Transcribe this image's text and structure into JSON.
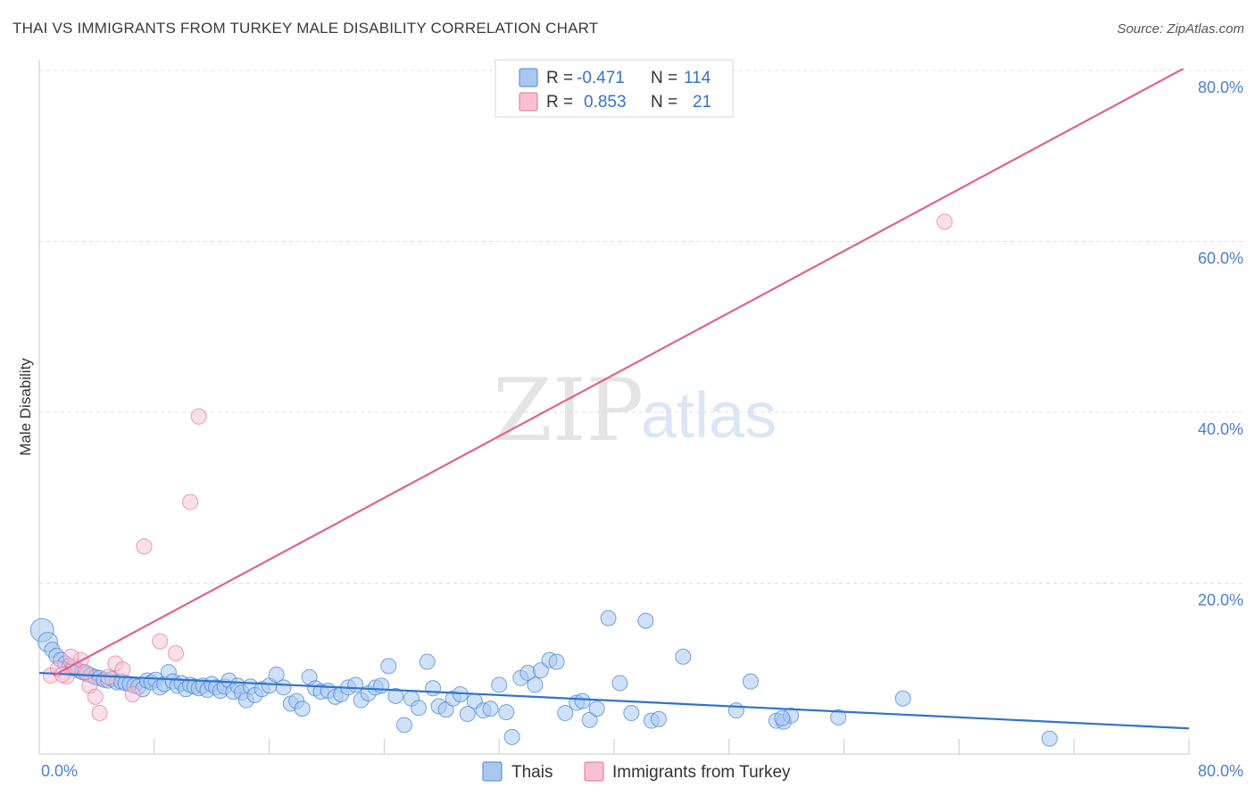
{
  "title": "THAI VS IMMIGRANTS FROM TURKEY MALE DISABILITY CORRELATION CHART",
  "source": "Source: ZipAtlas.com",
  "watermark": {
    "zip": "ZIP",
    "atlas": "atlas"
  },
  "colors": {
    "thais": "#4a86d8",
    "turkey": "#e8709a",
    "thais_fill": "#a9c8f0",
    "turkey_fill": "#f7c1d3"
  },
  "chart_data": {
    "type": "scatter",
    "title": "THAI VS IMMIGRANTS FROM TURKEY MALE DISABILITY CORRELATION CHART",
    "xlabel": "",
    "ylabel": "Male Disability",
    "xlim": [
      0,
      80
    ],
    "ylim": [
      0,
      80
    ],
    "x_tick_labels": [
      "0.0%",
      "80.0%"
    ],
    "y_ticks": [
      20,
      40,
      60,
      80
    ],
    "y_tick_labels": [
      "20.0%",
      "40.0%",
      "60.0%",
      "80.0%"
    ],
    "legend": [
      {
        "name": "Thais",
        "r_label": "R =",
        "r": "-0.471",
        "n_label": "N =",
        "n": "114"
      },
      {
        "name": "Immigrants from Turkey",
        "r_label": "R =",
        "r": "0.853",
        "n_label": "N =",
        "n": "21"
      }
    ],
    "series": [
      {
        "name": "Thais",
        "trend": [
          [
            0,
            9.5
          ],
          [
            80,
            3.0
          ]
        ],
        "points": [
          [
            0.2,
            14.5
          ],
          [
            0.6,
            13.1
          ],
          [
            0.9,
            12.2
          ],
          [
            1.2,
            11.5
          ],
          [
            1.5,
            11.0
          ],
          [
            1.8,
            10.6
          ],
          [
            2.1,
            10.3
          ],
          [
            2.4,
            10.0
          ],
          [
            2.7,
            9.8
          ],
          [
            3.0,
            9.6
          ],
          [
            3.3,
            9.4
          ],
          [
            3.6,
            9.2
          ],
          [
            3.9,
            9.0
          ],
          [
            4.2,
            8.9
          ],
          [
            4.5,
            8.7
          ],
          [
            4.8,
            8.6
          ],
          [
            5.1,
            8.8
          ],
          [
            5.4,
            8.4
          ],
          [
            5.7,
            8.5
          ],
          [
            6.0,
            8.3
          ],
          [
            6.3,
            8.2
          ],
          [
            6.6,
            8.0
          ],
          [
            6.9,
            7.9
          ],
          [
            7.2,
            7.6
          ],
          [
            7.5,
            8.6
          ],
          [
            7.8,
            8.4
          ],
          [
            8.1,
            8.7
          ],
          [
            8.4,
            7.8
          ],
          [
            8.7,
            8.2
          ],
          [
            9.0,
            9.6
          ],
          [
            9.3,
            8.5
          ],
          [
            9.6,
            8.0
          ],
          [
            9.9,
            8.3
          ],
          [
            10.2,
            7.6
          ],
          [
            10.5,
            8.1
          ],
          [
            10.8,
            7.9
          ],
          [
            11.1,
            7.7
          ],
          [
            11.4,
            8.0
          ],
          [
            11.7,
            7.5
          ],
          [
            12.0,
            8.2
          ],
          [
            12.3,
            7.8
          ],
          [
            12.6,
            7.4
          ],
          [
            12.9,
            7.9
          ],
          [
            13.2,
            8.6
          ],
          [
            13.5,
            7.3
          ],
          [
            13.8,
            8.0
          ],
          [
            14.1,
            7.2
          ],
          [
            14.4,
            6.3
          ],
          [
            14.7,
            7.9
          ],
          [
            15.0,
            6.9
          ],
          [
            15.5,
            7.6
          ],
          [
            16.0,
            8.0
          ],
          [
            16.5,
            9.3
          ],
          [
            17.0,
            7.8
          ],
          [
            17.5,
            5.9
          ],
          [
            17.9,
            6.2
          ],
          [
            18.3,
            5.3
          ],
          [
            18.8,
            9.0
          ],
          [
            19.2,
            7.7
          ],
          [
            19.6,
            7.3
          ],
          [
            20.1,
            7.4
          ],
          [
            20.6,
            6.7
          ],
          [
            21.0,
            7.0
          ],
          [
            21.5,
            7.8
          ],
          [
            22.0,
            8.1
          ],
          [
            22.4,
            6.3
          ],
          [
            22.9,
            7.1
          ],
          [
            23.4,
            7.8
          ],
          [
            23.8,
            8.0
          ],
          [
            24.3,
            10.3
          ],
          [
            24.8,
            6.8
          ],
          [
            25.4,
            3.4
          ],
          [
            25.9,
            6.5
          ],
          [
            26.4,
            5.4
          ],
          [
            27.0,
            10.8
          ],
          [
            27.4,
            7.7
          ],
          [
            27.8,
            5.6
          ],
          [
            28.3,
            5.2
          ],
          [
            28.8,
            6.5
          ],
          [
            29.3,
            7.0
          ],
          [
            29.8,
            4.7
          ],
          [
            30.3,
            6.2
          ],
          [
            30.9,
            5.1
          ],
          [
            31.4,
            5.3
          ],
          [
            32.0,
            8.1
          ],
          [
            32.5,
            4.9
          ],
          [
            32.9,
            2.0
          ],
          [
            33.5,
            8.9
          ],
          [
            34.0,
            9.5
          ],
          [
            34.5,
            8.1
          ],
          [
            34.9,
            9.8
          ],
          [
            35.5,
            11.0
          ],
          [
            36.0,
            10.8
          ],
          [
            36.6,
            4.8
          ],
          [
            37.4,
            6.0
          ],
          [
            37.8,
            6.2
          ],
          [
            38.3,
            4.0
          ],
          [
            38.8,
            5.3
          ],
          [
            39.6,
            15.9
          ],
          [
            40.4,
            8.3
          ],
          [
            41.2,
            4.8
          ],
          [
            42.2,
            15.6
          ],
          [
            42.6,
            3.9
          ],
          [
            43.1,
            4.1
          ],
          [
            44.8,
            11.4
          ],
          [
            48.5,
            5.1
          ],
          [
            49.5,
            8.5
          ],
          [
            51.3,
            3.9
          ],
          [
            51.8,
            3.8
          ],
          [
            52.3,
            4.5
          ],
          [
            51.7,
            4.2
          ],
          [
            55.6,
            4.3
          ],
          [
            60.1,
            6.5
          ],
          [
            70.3,
            1.8
          ]
        ]
      },
      {
        "name": "Immigrants from Turkey",
        "trend": [
          [
            1.0,
            9.2
          ],
          [
            79.6,
            80.2
          ]
        ],
        "points": [
          [
            0.8,
            9.2
          ],
          [
            1.3,
            10.0
          ],
          [
            1.9,
            9.1
          ],
          [
            2.4,
            10.3
          ],
          [
            2.9,
            11.0
          ],
          [
            3.5,
            8.0
          ],
          [
            3.9,
            6.7
          ],
          [
            4.2,
            4.8
          ],
          [
            4.8,
            9.0
          ],
          [
            5.3,
            10.6
          ],
          [
            5.8,
            9.9
          ],
          [
            6.5,
            7.0
          ],
          [
            7.3,
            24.3
          ],
          [
            8.4,
            13.2
          ],
          [
            9.5,
            11.8
          ],
          [
            10.5,
            29.5
          ],
          [
            11.1,
            39.5
          ],
          [
            63.0,
            62.3
          ],
          [
            2.2,
            11.4
          ],
          [
            1.6,
            9.3
          ],
          [
            3.2,
            9.6
          ]
        ]
      }
    ]
  }
}
